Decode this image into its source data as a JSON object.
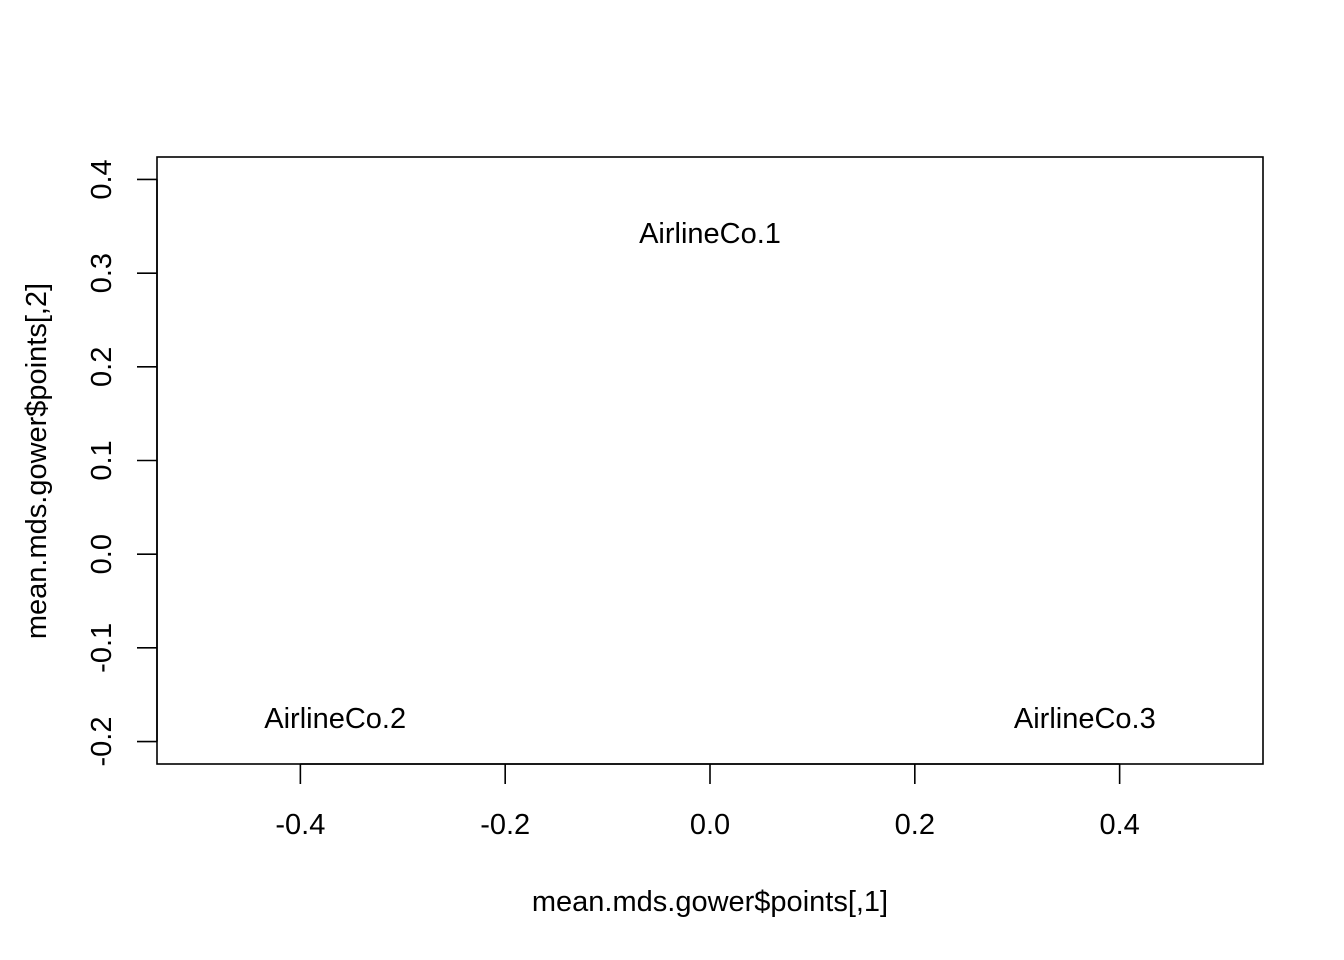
{
  "chart_data": {
    "type": "scatter",
    "xlabel": "mean.mds.gower$points[,1]",
    "ylabel": "mean.mds.gower$points[,2]",
    "xlim": [
      -0.54,
      0.54
    ],
    "ylim": [
      -0.224,
      0.424
    ],
    "x_ticks": [
      -0.4,
      -0.2,
      0.0,
      0.2,
      0.4
    ],
    "x_tick_labels": [
      "-0.4",
      "-0.2",
      "0.0",
      "0.2",
      "0.4"
    ],
    "y_ticks": [
      -0.2,
      -0.1,
      0.0,
      0.1,
      0.2,
      0.3,
      0.4
    ],
    "y_tick_labels": [
      "-0.2",
      "-0.1",
      "0.0",
      "0.1",
      "0.2",
      "0.3",
      "0.4"
    ],
    "grid": false,
    "marker": "text-label",
    "points": [
      {
        "label": "AirlineCo.1",
        "x": 0.0,
        "y": 0.343
      },
      {
        "label": "AirlineCo.2",
        "x": -0.366,
        "y": -0.175
      },
      {
        "label": "AirlineCo.3",
        "x": 0.366,
        "y": -0.175
      }
    ]
  }
}
